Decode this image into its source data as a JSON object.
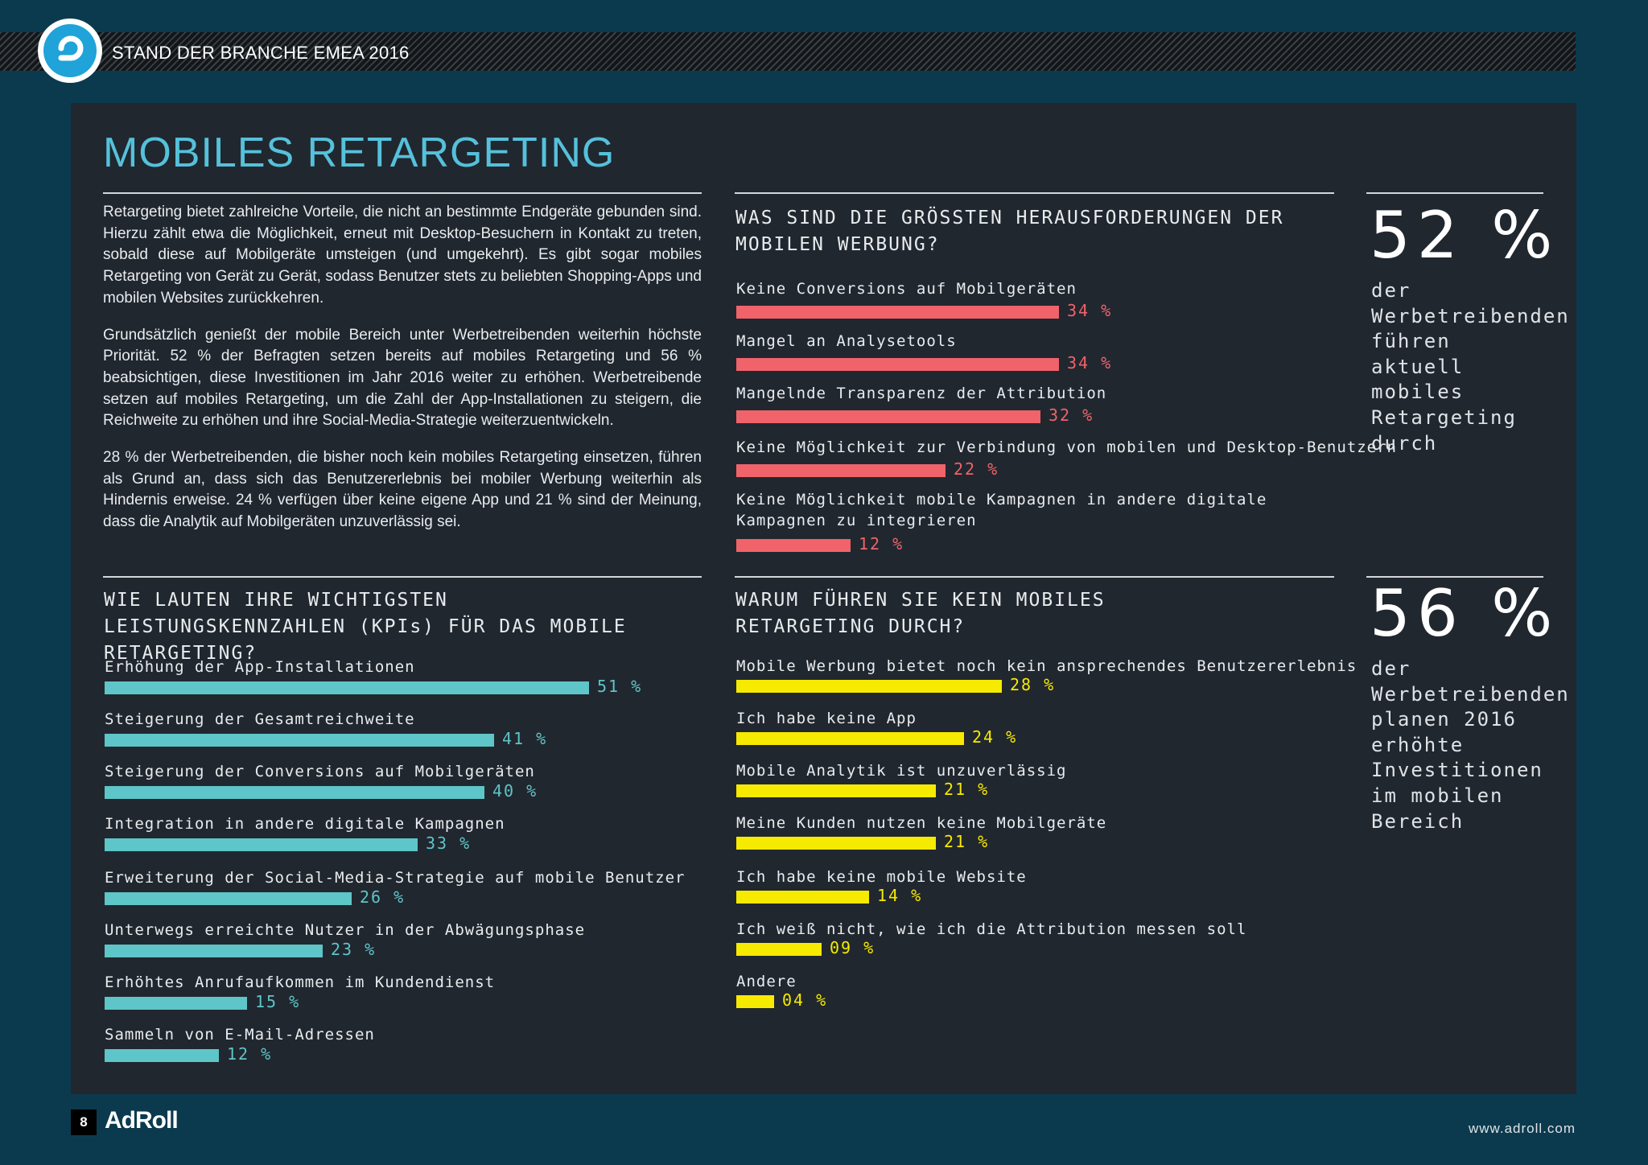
{
  "header": {
    "title": "STAND DER BRANCHE EMEA 2016",
    "logo_icon": "adroll-logo-icon"
  },
  "main_title": "MOBILES RETARGETING",
  "intro": [
    "Retargeting bietet zahlreiche Vorteile, die nicht an bestimmte Endgeräte gebunden sind. Hierzu zählt etwa die Möglichkeit, erneut mit Desktop-Besuchern in Kontakt zu treten, sobald diese auf Mobilgeräte umsteigen (und umgekehrt). Es gibt sogar mobiles Retargeting von Gerät zu Gerät, sodass Benutzer stets zu beliebten Shopping-Apps und mobilen Websites zurückkehren.",
    "Grundsätzlich genießt der mobile Bereich unter Werbetreibenden weiterhin höchste Priorität. 52 % der Befragten setzen bereits auf mobiles Retargeting und 56 % beabsichtigen, diese Investitionen im Jahr 2016 weiter zu erhöhen. Werbetreibende setzen auf mobiles Retargeting, um die Zahl der App-Installationen zu steigern, die Reichweite zu erhöhen und ihre Social-Media-Strategie weiterzuentwickeln.",
    "28 % der Werbetreibenden, die bisher noch kein mobiles Retargeting einsetzen, führen als Grund an, dass sich das Benutzererlebnis bei mobiler Werbung weiterhin als Hindernis erweise. 24 % verfügen über keine eigene App und 21 % sind der Meinung, dass die Analytik auf Mobilgeräten unzuverlässig sei."
  ],
  "colors": {
    "challenges": "#f0636a",
    "kpis": "#5ec5c8",
    "reasons": "#f6ea00"
  },
  "stats": [
    {
      "value": "52 %",
      "text": "der Werbetreibenden führen aktuell mobiles Retargeting durch"
    },
    {
      "value": "56 %",
      "text": "der Werbetreibenden planen 2016 erhöhte Investitionen im mobilen Bereich"
    }
  ],
  "chart_data": [
    {
      "type": "bar",
      "title": "WAS SIND DIE GRÖSSTEN HERAUSFORDERUNGEN DER MOBILEN WERBUNG?",
      "categories": [
        "Keine Conversions auf Mobilgeräten",
        "Mangel an Analysetools",
        "Mangelnde Transparenz der Attribution",
        "Keine Möglichkeit zur Verbindung von mobilen und Desktop-Benutzern",
        "Keine Möglichkeit mobile Kampagnen in andere digitale Kampagnen zu integrieren"
      ],
      "values": [
        34,
        34,
        32,
        22,
        12
      ],
      "value_labels": [
        "34 %",
        "34 %",
        "32 %",
        "22 %",
        "12 %"
      ],
      "orientation": "horizontal"
    },
    {
      "type": "bar",
      "title": "WIE LAUTEN IHRE WICHTIGSTEN LEISTUNGSKENNZAHLEN (KPIs) FÜR DAS MOBILE RETARGETING?",
      "categories": [
        "Erhöhung der App-Installationen",
        "Steigerung der Gesamtreichweite",
        "Steigerung der Conversions auf Mobilgeräten",
        "Integration in andere digitale Kampagnen",
        "Erweiterung der Social-Media-Strategie auf mobile Benutzer",
        "Unterwegs erreichte Nutzer in der Abwägungsphase",
        "Erhöhtes Anrufaufkommen im Kundendienst",
        "Sammeln von E-Mail-Adressen"
      ],
      "values": [
        51,
        41,
        40,
        33,
        26,
        23,
        15,
        12
      ],
      "value_labels": [
        "51 %",
        "41 %",
        "40 %",
        "33 %",
        "26 %",
        "23 %",
        "15 %",
        "12 %"
      ],
      "orientation": "horizontal"
    },
    {
      "type": "bar",
      "title": "WARUM FÜHREN SIE KEIN MOBILES RETARGETING DURCH?",
      "categories": [
        "Mobile Werbung bietet noch kein ansprechendes Benutzererlebnis",
        "Ich habe keine App",
        "Mobile Analytik ist unzuverlässig",
        "Meine Kunden nutzen keine Mobilgeräte",
        "Ich habe keine mobile Website",
        "Ich weiß nicht, wie ich die Attribution messen soll",
        "Andere"
      ],
      "values": [
        28,
        24,
        21,
        21,
        14,
        9,
        4
      ],
      "value_labels": [
        "28 %",
        "24 %",
        "21 %",
        "21 %",
        "14 %",
        "09 %",
        "04 %"
      ],
      "orientation": "horizontal"
    }
  ],
  "footer": {
    "page_number": "8",
    "logo": "AdRoll",
    "url": "www.adroll.com"
  }
}
